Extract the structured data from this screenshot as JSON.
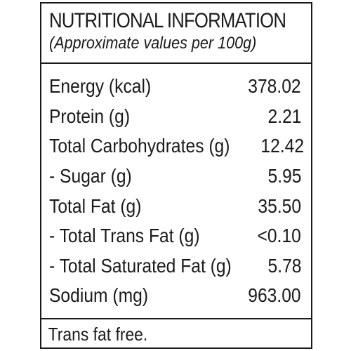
{
  "header": {
    "title": "NUTRITIONAL INFORMATION",
    "subtitle": "(Approximate values per 100g)"
  },
  "nutrients": [
    {
      "name": "Energy (kcal)",
      "value": "378.02"
    },
    {
      "name": "Protein (g)",
      "value": "2.21"
    },
    {
      "name": "Total Carbohydrates (g)",
      "value": "12.42"
    },
    {
      "name": "- Sugar (g)",
      "value": "5.95"
    },
    {
      "name": "Total Fat (g)",
      "value": "35.50"
    },
    {
      "name": "- Total Trans Fat (g)",
      "value": "<0.10"
    },
    {
      "name": "- Total Saturated Fat (g)",
      "value": "5.78"
    },
    {
      "name": "Sodium (mg)",
      "value": "963.00"
    }
  ],
  "footer": {
    "note": "Trans fat free."
  }
}
